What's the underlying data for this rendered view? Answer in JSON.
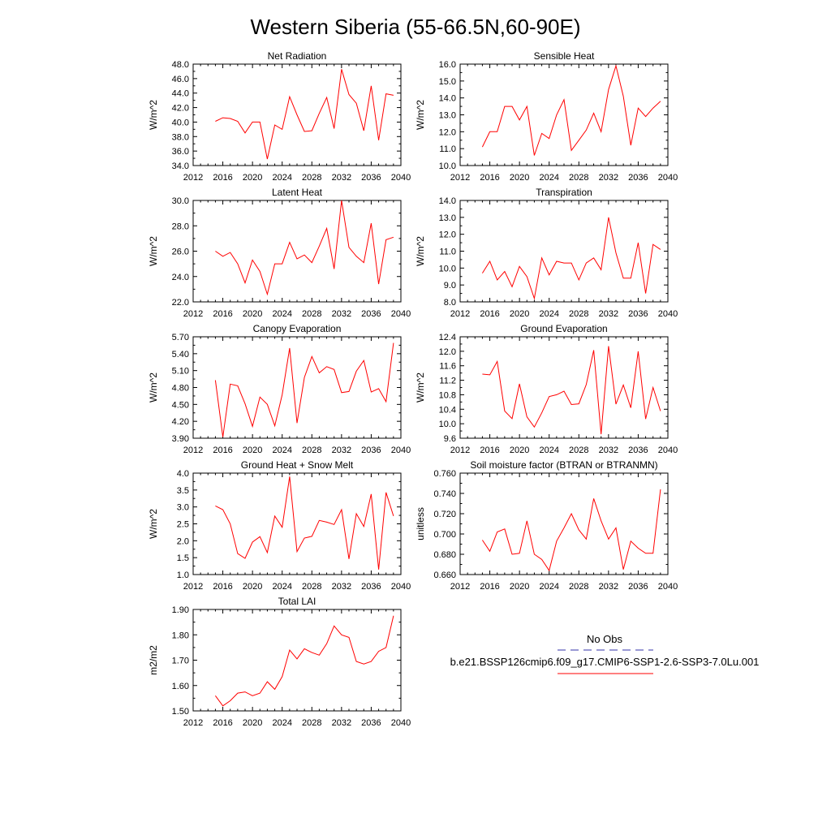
{
  "page_title": "Western Siberia (55-66.5N,60-90E)",
  "legend": {
    "obs_label": "No Obs",
    "obs_color": "#3333aa",
    "model_label": "b.e21.BSSP126cmip6.f09_g17.CMIP6-SSP1-2.6-SSP3-7.0Lu.001",
    "model_color": "#ff0000"
  },
  "chart_data": [
    {
      "type": "line",
      "title": "Net Radiation",
      "ylabel": "W/m^2",
      "xlim": [
        2012,
        2040
      ],
      "ylim": [
        34.0,
        48.0
      ],
      "x_ticks": [
        "2012",
        "2016",
        "2020",
        "2024",
        "2028",
        "2032",
        "2036",
        "2040"
      ],
      "y_ticks": [
        "34.0",
        "36.0",
        "38.0",
        "40.0",
        "42.0",
        "44.0",
        "46.0",
        "48.0"
      ],
      "grid": false,
      "x": [
        2015,
        2016,
        2017,
        2018,
        2019,
        2020,
        2021,
        2022,
        2023,
        2024,
        2025,
        2026,
        2027,
        2028,
        2029,
        2030,
        2031,
        2032,
        2033,
        2034,
        2035,
        2036,
        2037,
        2038,
        2039
      ],
      "series": [
        {
          "values": [
            40.1,
            40.6,
            40.5,
            40.1,
            38.5,
            40.0,
            40.0,
            34.9,
            39.6,
            39.0,
            43.5,
            41.0,
            38.7,
            38.8,
            41.2,
            43.4,
            39.1,
            47.3,
            43.8,
            42.6,
            38.8,
            45.0,
            37.5,
            43.9,
            43.7
          ],
          "color": "#ff0000"
        }
      ]
    },
    {
      "type": "line",
      "title": "Sensible Heat",
      "ylabel": "W/m^2",
      "xlim": [
        2012,
        2040
      ],
      "ylim": [
        10.0,
        16.0
      ],
      "x_ticks": [
        "2012",
        "2016",
        "2020",
        "2024",
        "2028",
        "2032",
        "2036",
        "2040"
      ],
      "y_ticks": [
        "10.0",
        "11.0",
        "12.0",
        "13.0",
        "14.0",
        "15.0",
        "16.0"
      ],
      "grid": false,
      "x": [
        2015,
        2016,
        2017,
        2018,
        2019,
        2020,
        2021,
        2022,
        2023,
        2024,
        2025,
        2026,
        2027,
        2028,
        2029,
        2030,
        2031,
        2032,
        2033,
        2034,
        2035,
        2036,
        2037,
        2038,
        2039
      ],
      "series": [
        {
          "values": [
            11.1,
            12.0,
            12.0,
            13.5,
            13.5,
            12.7,
            13.5,
            10.6,
            11.9,
            11.6,
            13.0,
            13.9,
            10.9,
            11.5,
            12.1,
            13.1,
            12.0,
            14.5,
            15.9,
            14.1,
            11.2,
            13.4,
            12.9,
            13.4,
            13.8
          ],
          "color": "#ff0000"
        }
      ]
    },
    {
      "type": "line",
      "title": "Latent Heat",
      "ylabel": "W/m^2",
      "xlim": [
        2012,
        2040
      ],
      "ylim": [
        22.0,
        30.0
      ],
      "x_ticks": [
        "2012",
        "2016",
        "2020",
        "2024",
        "2028",
        "2032",
        "2036",
        "2040"
      ],
      "y_ticks": [
        "22.0",
        "24.0",
        "26.0",
        "28.0",
        "30.0"
      ],
      "grid": false,
      "x": [
        2015,
        2016,
        2017,
        2018,
        2019,
        2020,
        2021,
        2022,
        2023,
        2024,
        2025,
        2026,
        2027,
        2028,
        2029,
        2030,
        2031,
        2032,
        2033,
        2034,
        2035,
        2036,
        2037,
        2038,
        2039
      ],
      "series": [
        {
          "values": [
            26.0,
            25.6,
            25.9,
            25.0,
            23.5,
            25.3,
            24.4,
            22.6,
            25.0,
            25.0,
            26.7,
            25.4,
            25.7,
            25.1,
            26.4,
            27.8,
            24.6,
            30.0,
            26.3,
            25.6,
            25.1,
            28.2,
            23.4,
            26.9,
            27.1
          ],
          "color": "#ff0000"
        }
      ]
    },
    {
      "type": "line",
      "title": "Transpiration",
      "ylabel": "W/m^2",
      "xlim": [
        2012,
        2040
      ],
      "ylim": [
        8.0,
        14.0
      ],
      "x_ticks": [
        "2012",
        "2016",
        "2020",
        "2024",
        "2028",
        "2032",
        "2036",
        "2040"
      ],
      "y_ticks": [
        "8.0",
        "9.0",
        "10.0",
        "11.0",
        "12.0",
        "13.0",
        "14.0"
      ],
      "grid": false,
      "x": [
        2015,
        2016,
        2017,
        2018,
        2019,
        2020,
        2021,
        2022,
        2023,
        2024,
        2025,
        2026,
        2027,
        2028,
        2029,
        2030,
        2031,
        2032,
        2033,
        2034,
        2035,
        2036,
        2037,
        2038,
        2039
      ],
      "series": [
        {
          "values": [
            9.7,
            10.4,
            9.3,
            9.8,
            8.9,
            10.1,
            9.5,
            8.2,
            10.6,
            9.6,
            10.4,
            10.3,
            10.3,
            9.3,
            10.3,
            10.6,
            9.9,
            13.0,
            10.9,
            9.4,
            9.4,
            11.5,
            8.5,
            11.4,
            11.1
          ],
          "color": "#ff0000"
        }
      ]
    },
    {
      "type": "line",
      "title": "Canopy Evaporation",
      "ylabel": "W/m^2",
      "xlim": [
        2012,
        2040
      ],
      "ylim": [
        3.9,
        5.7
      ],
      "x_ticks": [
        "2012",
        "2016",
        "2020",
        "2024",
        "2028",
        "2032",
        "2036",
        "2040"
      ],
      "y_ticks": [
        "3.90",
        "4.20",
        "4.50",
        "4.80",
        "5.10",
        "5.40",
        "5.70"
      ],
      "grid": false,
      "x": [
        2015,
        2016,
        2017,
        2018,
        2019,
        2020,
        2021,
        2022,
        2023,
        2024,
        2025,
        2026,
        2027,
        2028,
        2029,
        2030,
        2031,
        2032,
        2033,
        2034,
        2035,
        2036,
        2037,
        2038,
        2039
      ],
      "series": [
        {
          "values": [
            4.93,
            3.92,
            4.86,
            4.83,
            4.51,
            4.11,
            4.63,
            4.5,
            4.12,
            4.67,
            5.5,
            4.17,
            4.98,
            5.35,
            5.06,
            5.17,
            5.12,
            4.71,
            4.73,
            5.09,
            5.28,
            4.72,
            4.78,
            4.55,
            5.59
          ],
          "color": "#ff0000"
        }
      ]
    },
    {
      "type": "line",
      "title": "Ground Evaporation",
      "ylabel": "W/m^2",
      "xlim": [
        2012,
        2040
      ],
      "ylim": [
        9.6,
        12.4
      ],
      "x_ticks": [
        "2012",
        "2016",
        "2020",
        "2024",
        "2028",
        "2032",
        "2036",
        "2040"
      ],
      "y_ticks": [
        "9.6",
        "10.0",
        "10.4",
        "10.8",
        "11.2",
        "11.6",
        "12.0",
        "12.4"
      ],
      "grid": false,
      "x": [
        2015,
        2016,
        2017,
        2018,
        2019,
        2020,
        2021,
        2022,
        2023,
        2024,
        2025,
        2026,
        2027,
        2028,
        2029,
        2030,
        2031,
        2032,
        2033,
        2034,
        2035,
        2036,
        2037,
        2038,
        2039
      ],
      "series": [
        {
          "values": [
            11.37,
            11.35,
            11.72,
            10.35,
            10.14,
            11.1,
            10.19,
            9.91,
            10.3,
            10.75,
            10.8,
            10.9,
            10.53,
            10.55,
            11.08,
            12.03,
            9.71,
            12.14,
            10.54,
            11.07,
            10.44,
            12.0,
            10.13,
            11.0,
            10.35
          ],
          "color": "#ff0000"
        }
      ]
    },
    {
      "type": "line",
      "title": "Ground Heat + Snow Melt",
      "ylabel": "W/m^2",
      "xlim": [
        2012,
        2040
      ],
      "ylim": [
        1.0,
        4.0
      ],
      "x_ticks": [
        "2012",
        "2016",
        "2020",
        "2024",
        "2028",
        "2032",
        "2036",
        "2040"
      ],
      "y_ticks": [
        "1.0",
        "1.5",
        "2.0",
        "2.5",
        "3.0",
        "3.5",
        "4.0"
      ],
      "grid": false,
      "x": [
        2015,
        2016,
        2017,
        2018,
        2019,
        2020,
        2021,
        2022,
        2023,
        2024,
        2025,
        2026,
        2027,
        2028,
        2029,
        2030,
        2031,
        2032,
        2033,
        2034,
        2035,
        2036,
        2037,
        2038,
        2039
      ],
      "series": [
        {
          "values": [
            3.03,
            2.92,
            2.5,
            1.62,
            1.48,
            1.96,
            2.12,
            1.65,
            2.73,
            2.4,
            3.9,
            1.68,
            2.08,
            2.13,
            2.6,
            2.55,
            2.48,
            2.92,
            1.46,
            2.8,
            2.42,
            3.38,
            1.15,
            3.43,
            2.73
          ],
          "color": "#ff0000"
        }
      ]
    },
    {
      "type": "line",
      "title": "Soil moisture factor (BTRAN or BTRANMN)",
      "ylabel": "unitless",
      "xlim": [
        2012,
        2040
      ],
      "ylim": [
        0.66,
        0.76
      ],
      "x_ticks": [
        "2012",
        "2016",
        "2020",
        "2024",
        "2028",
        "2032",
        "2036",
        "2040"
      ],
      "y_ticks": [
        "0.660",
        "0.680",
        "0.700",
        "0.720",
        "0.740",
        "0.760"
      ],
      "grid": false,
      "x": [
        2015,
        2016,
        2017,
        2018,
        2019,
        2020,
        2021,
        2022,
        2023,
        2024,
        2025,
        2026,
        2027,
        2028,
        2029,
        2030,
        2031,
        2032,
        2033,
        2034,
        2035,
        2036,
        2037,
        2038,
        2039
      ],
      "series": [
        {
          "values": [
            0.694,
            0.683,
            0.702,
            0.705,
            0.68,
            0.681,
            0.713,
            0.68,
            0.675,
            0.664,
            0.693,
            0.706,
            0.72,
            0.704,
            0.695,
            0.735,
            0.713,
            0.695,
            0.706,
            0.665,
            0.693,
            0.686,
            0.681,
            0.681,
            0.744
          ],
          "color": "#ff0000"
        }
      ]
    },
    {
      "type": "line",
      "title": "Total LAI",
      "ylabel": "m2/m2",
      "xlim": [
        2012,
        2040
      ],
      "ylim": [
        1.5,
        1.9
      ],
      "x_ticks": [
        "2012",
        "2016",
        "2020",
        "2024",
        "2028",
        "2032",
        "2036",
        "2040"
      ],
      "y_ticks": [
        "1.50",
        "1.60",
        "1.70",
        "1.80",
        "1.90"
      ],
      "grid": false,
      "x": [
        2015,
        2016,
        2017,
        2018,
        2019,
        2020,
        2021,
        2022,
        2023,
        2024,
        2025,
        2026,
        2027,
        2028,
        2029,
        2030,
        2031,
        2032,
        2033,
        2034,
        2035,
        2036,
        2037,
        2038,
        2039
      ],
      "series": [
        {
          "values": [
            1.56,
            1.52,
            1.54,
            1.57,
            1.575,
            1.56,
            1.57,
            1.615,
            1.585,
            1.635,
            1.74,
            1.705,
            1.745,
            1.73,
            1.72,
            1.765,
            1.835,
            1.8,
            1.79,
            1.695,
            1.685,
            1.695,
            1.735,
            1.75,
            1.875
          ],
          "color": "#ff0000"
        }
      ]
    }
  ]
}
